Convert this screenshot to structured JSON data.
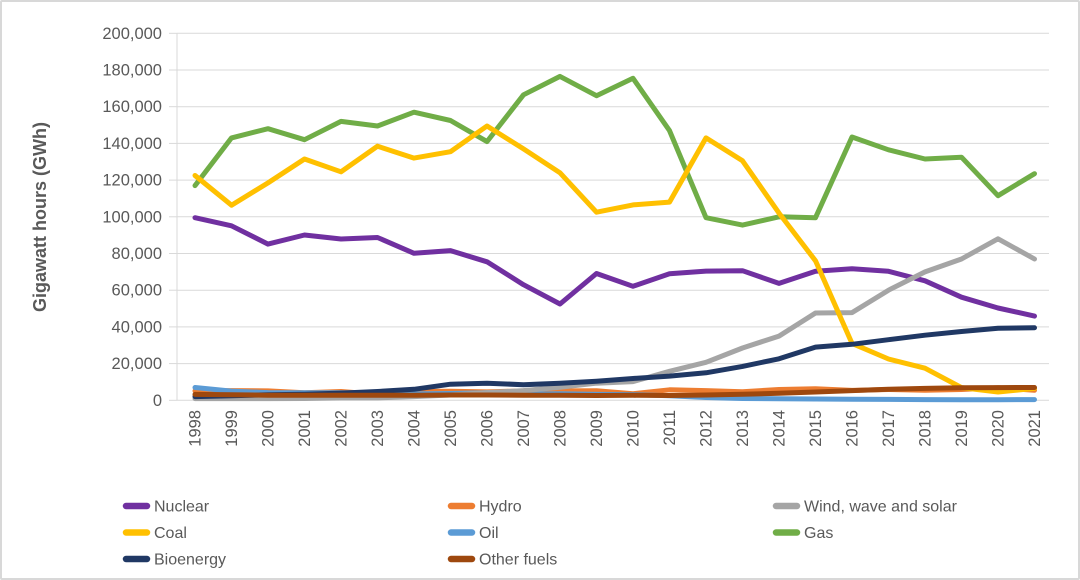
{
  "chart_data": {
    "type": "line",
    "title": "",
    "ylabel": "Gigawatt hours (GWh)",
    "xlabel": "",
    "ylim": [
      0,
      200000
    ],
    "ytick_step": 20000,
    "ytick_labels": [
      "0",
      "20,000",
      "40,000",
      "60,000",
      "80,000",
      "100,000",
      "120,000",
      "140,000",
      "160,000",
      "180,000",
      "200,000"
    ],
    "grid": true,
    "legend_position": "bottom",
    "x": [
      1998,
      1999,
      2000,
      2001,
      2002,
      2003,
      2004,
      2005,
      2006,
      2007,
      2008,
      2009,
      2010,
      2011,
      2012,
      2013,
      2014,
      2015,
      2016,
      2017,
      2018,
      2019,
      2020,
      2021
    ],
    "series": [
      {
        "name": "Nuclear",
        "color": "#7030A0",
        "values": [
          99500,
          95100,
          85100,
          90100,
          87900,
          88700,
          80100,
          81600,
          75500,
          63000,
          52500,
          69100,
          62100,
          69000,
          70400,
          70600,
          63700,
          70300,
          71700,
          70300,
          65100,
          56200,
          50300,
          45900
        ]
      },
      {
        "name": "Coal",
        "color": "#FFC000",
        "values": [
          122500,
          106300,
          118500,
          131500,
          124500,
          138500,
          132000,
          135500,
          149500,
          137000,
          124000,
          102500,
          106500,
          108000,
          143000,
          130500,
          102000,
          76000,
          31000,
          22500,
          17500,
          6900,
          4500,
          6500
        ]
      },
      {
        "name": "Bioenergy",
        "color": "#203864",
        "values": [
          2000,
          2500,
          3000,
          3300,
          3900,
          4800,
          6000,
          8800,
          9300,
          8500,
          9300,
          10400,
          11900,
          13200,
          15000,
          18500,
          22600,
          29000,
          30500,
          33000,
          35500,
          37500,
          39300,
          39500
        ]
      },
      {
        "name": "Hydro",
        "color": "#ED7D31",
        "values": [
          5100,
          5300,
          5100,
          4100,
          4800,
          3200,
          4800,
          4900,
          4600,
          5100,
          5100,
          5200,
          3600,
          5700,
          5300,
          4700,
          5900,
          6300,
          5400,
          5900,
          5500,
          5900,
          6800,
          5500
        ]
      },
      {
        "name": "Oil",
        "color": "#5B9BD5",
        "values": [
          7000,
          5000,
          4200,
          4100,
          4100,
          3800,
          3500,
          3700,
          4100,
          3400,
          3600,
          3200,
          3100,
          2500,
          1500,
          1000,
          800,
          700,
          600,
          500,
          400,
          300,
          300,
          400
        ]
      },
      {
        "name": "Other fuels",
        "color": "#9E480E",
        "values": [
          3200,
          3000,
          2800,
          2700,
          2700,
          2800,
          2800,
          2900,
          2900,
          2800,
          2700,
          2600,
          2700,
          2600,
          2900,
          3300,
          3800,
          4500,
          5300,
          6000,
          6500,
          6800,
          6900,
          7000
        ]
      },
      {
        "name": "Wind, wave and solar",
        "color": "#A5A5A5",
        "values": [
          900,
          900,
          950,
          1000,
          1300,
          1300,
          2000,
          2900,
          4200,
          5300,
          7100,
          9300,
          10200,
          15800,
          20700,
          28500,
          35000,
          47600,
          47800,
          60000,
          70000,
          77000,
          88000,
          77000
        ]
      },
      {
        "name": "Gas",
        "color": "#70AD47",
        "values": [
          117000,
          143000,
          148000,
          142000,
          152000,
          149500,
          157000,
          152500,
          141000,
          166500,
          176500,
          166000,
          175500,
          147000,
          99500,
          95500,
          100000,
          99500,
          143500,
          136500,
          131500,
          132500,
          111500,
          123500
        ]
      }
    ],
    "draw_order": [
      "Nuclear",
      "Hydro",
      "Oil",
      "Gas",
      "Wind, wave and solar",
      "Coal",
      "Bioenergy",
      "Other fuels"
    ],
    "legend_rows": [
      [
        "Nuclear",
        "Hydro",
        "Wind, wave and solar"
      ],
      [
        "Coal",
        "Oil",
        "Gas"
      ],
      [
        "Bioenergy",
        "Other fuels"
      ]
    ]
  },
  "colors": {
    "grid": "#D9D9D9",
    "axis_line": "#D9D9D9",
    "axis_text": "#595959",
    "background": "#FFFFFF",
    "border": "#D8D8D8"
  }
}
